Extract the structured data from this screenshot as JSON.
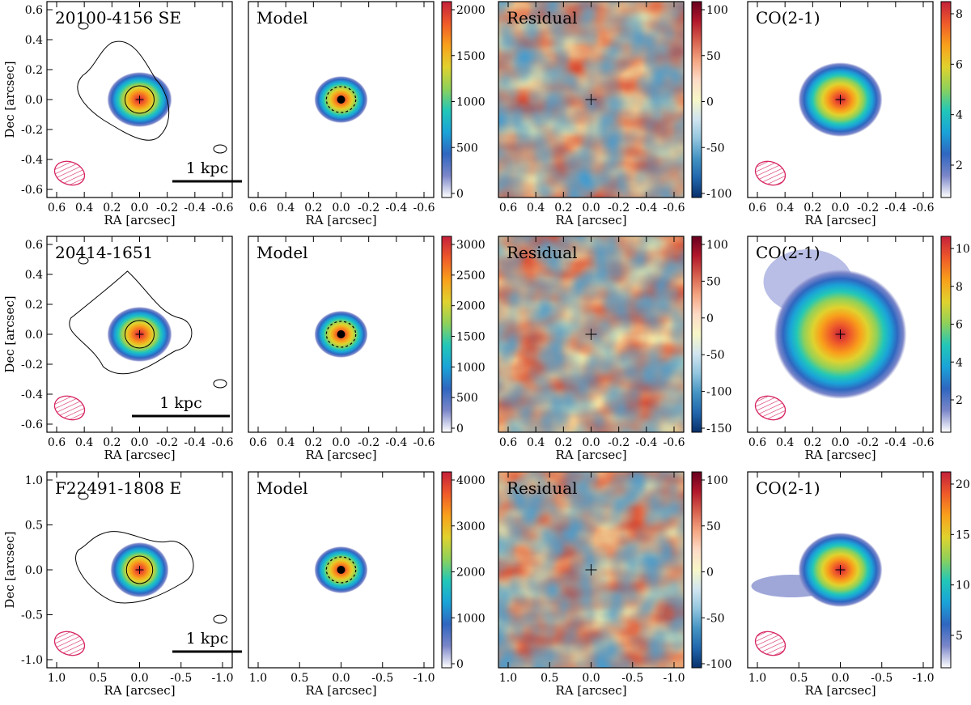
{
  "figure": {
    "colormap_residual": [
      "#08306b",
      "#2166ac",
      "#4393c3",
      "#92c5de",
      "#d1e5f0",
      "#f7f7c8",
      "#fddbc7",
      "#f4a582",
      "#d6604d",
      "#b2182b",
      "#67001f"
    ],
    "colormap_image": [
      "#ffffff",
      "#7b86c9",
      "#2f66c0",
      "#1aa3d8",
      "#22c7b8",
      "#8fd15a",
      "#e0d22e",
      "#f9a01b",
      "#ef5a2a",
      "#c4203a"
    ],
    "beam_color": "#d6245e",
    "rows": [
      {
        "target": "20100-4156 SE",
        "scale_label": "1 kpc",
        "axis_x_label": "RA [arcsec]",
        "axis_y_label": "Dec [arcsec]",
        "x_ticks": [
          "0.6",
          "0.4",
          "0.2",
          "0.0",
          "-0.2",
          "-0.4",
          "-0.6"
        ],
        "y_ticks": [
          "0.6",
          "0.4",
          "0.2",
          "0.0",
          "-0.2",
          "-0.4",
          "-0.6"
        ],
        "panels": [
          {
            "title": "20100-4156 SE",
            "colorbar": []
          },
          {
            "title": "Model",
            "colorbar": [
              "2000",
              "1500",
              "1000",
              "500",
              "0"
            ]
          },
          {
            "title": "Residual",
            "colorbar": [
              "100",
              "50",
              "0",
              "-50",
              "-100"
            ]
          },
          {
            "title": "CO(2-1)",
            "colorbar": [
              "8",
              "6",
              "4",
              "2"
            ]
          }
        ]
      },
      {
        "target": "20414-1651",
        "scale_label": "1 kpc",
        "axis_x_label": "RA [arcsec]",
        "axis_y_label": "Dec [arcsec]",
        "x_ticks": [
          "0.6",
          "0.4",
          "0.2",
          "0.0",
          "-0.2",
          "-0.4",
          "-0.6"
        ],
        "y_ticks": [
          "0.6",
          "0.4",
          "0.2",
          "0.0",
          "-0.2",
          "-0.4",
          "-0.6"
        ],
        "panels": [
          {
            "title": "20414-1651",
            "colorbar": []
          },
          {
            "title": "Model",
            "colorbar": [
              "3000",
              "2500",
              "2000",
              "1500",
              "1000",
              "500",
              "0"
            ]
          },
          {
            "title": "Residual",
            "colorbar": [
              "100",
              "50",
              "0",
              "-50",
              "-100",
              "-150"
            ]
          },
          {
            "title": "CO(2-1)",
            "colorbar": [
              "10",
              "8",
              "6",
              "4",
              "2"
            ]
          }
        ]
      },
      {
        "target": "F22491-1808 E",
        "scale_label": "1 kpc",
        "axis_x_label": "RA [arcsec]",
        "axis_y_label": "Dec [arcsec]",
        "x_ticks": [
          "1.0",
          "0.5",
          "0.0",
          "-0.5",
          "-1.0"
        ],
        "y_ticks": [
          "1.0",
          "0.5",
          "0.0",
          "-0.5",
          "-1.0"
        ],
        "panels": [
          {
            "title": "F22491-1808 E",
            "colorbar": []
          },
          {
            "title": "Model",
            "colorbar": [
              "4000",
              "3000",
              "2000",
              "1000",
              "0"
            ]
          },
          {
            "title": "Residual",
            "colorbar": [
              "100",
              "50",
              "0",
              "-50",
              "-100"
            ]
          },
          {
            "title": "CO(2-1)",
            "colorbar": [
              "20",
              "15",
              "10",
              "5"
            ]
          }
        ]
      }
    ]
  }
}
